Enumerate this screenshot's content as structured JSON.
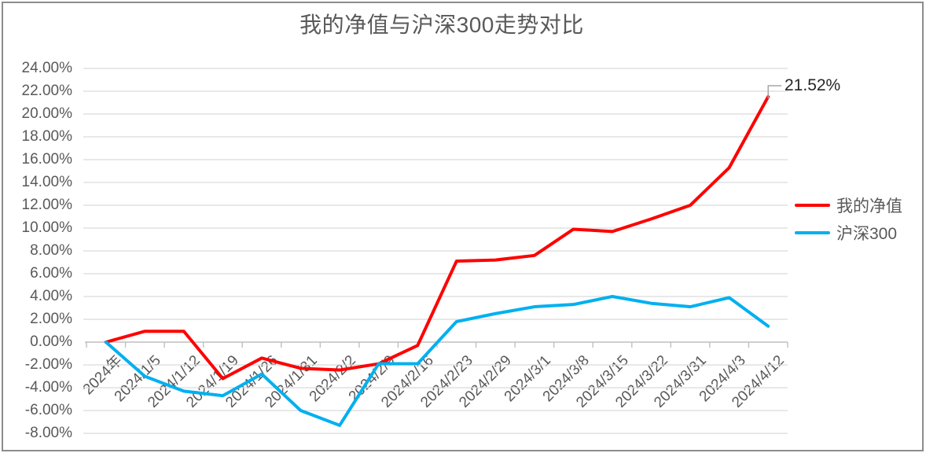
{
  "frame": {
    "background": "#FFFFFF",
    "border_color": "#8C8C8C"
  },
  "chart_data": {
    "type": "line",
    "title": "我的净值与沪深300走势对比",
    "categories": [
      "2024年",
      "2024/1/5",
      "2024/1/12",
      "2024/1/19",
      "2024/1/26",
      "2024/1/31",
      "2024/2/2",
      "2024/2/9",
      "2024/2/16",
      "2024/2/23",
      "2024/2/29",
      "2024/3/1",
      "2024/3/8",
      "2024/3/15",
      "2024/3/22",
      "2024/3/31",
      "2024/4/3",
      "2024/4/12"
    ],
    "series": [
      {
        "name": "我的净值",
        "color": "#FF0000",
        "values": [
          0.0,
          0.95,
          0.95,
          -3.2,
          -1.4,
          -2.3,
          -2.45,
          -1.9,
          -0.3,
          7.1,
          7.2,
          7.6,
          9.9,
          9.7,
          10.8,
          12.0,
          15.3,
          21.52
        ]
      },
      {
        "name": "沪深300",
        "color": "#00B0F0",
        "values": [
          0.0,
          -3.0,
          -4.3,
          -4.7,
          -2.8,
          -6.0,
          -7.3,
          -1.9,
          -1.9,
          1.8,
          2.5,
          3.1,
          3.3,
          4.0,
          3.4,
          3.1,
          3.9,
          1.4
        ]
      }
    ],
    "y_axis": {
      "min": -8,
      "max": 24,
      "step": 2,
      "tick_labels": [
        "24.00%",
        "22.00%",
        "20.00%",
        "18.00%",
        "16.00%",
        "14.00%",
        "12.00%",
        "10.00%",
        "8.00%",
        "6.00%",
        "4.00%",
        "2.00%",
        "0.00%",
        "-2.00%",
        "-4.00%",
        "-6.00%",
        "-8.00%"
      ]
    },
    "x_axis": {
      "label_rotation_deg": -45
    },
    "grid": true,
    "legend_position": "right",
    "annotation": {
      "text": "21.52%",
      "series": "我的净值",
      "category": "2024/4/12",
      "value": 21.52
    },
    "colors": {
      "gridline": "#D9D9D9",
      "axis_line": "#BFBFBF",
      "tick": "#BFBFBF",
      "label_text": "#595959",
      "title_text": "#595959",
      "annotation_text": "#262626",
      "annotation_connector": "#A6A6A6"
    }
  },
  "legend": {
    "items": [
      {
        "label": "我的净值",
        "color": "#FF0000"
      },
      {
        "label": "沪深300",
        "color": "#00B0F0"
      }
    ]
  }
}
